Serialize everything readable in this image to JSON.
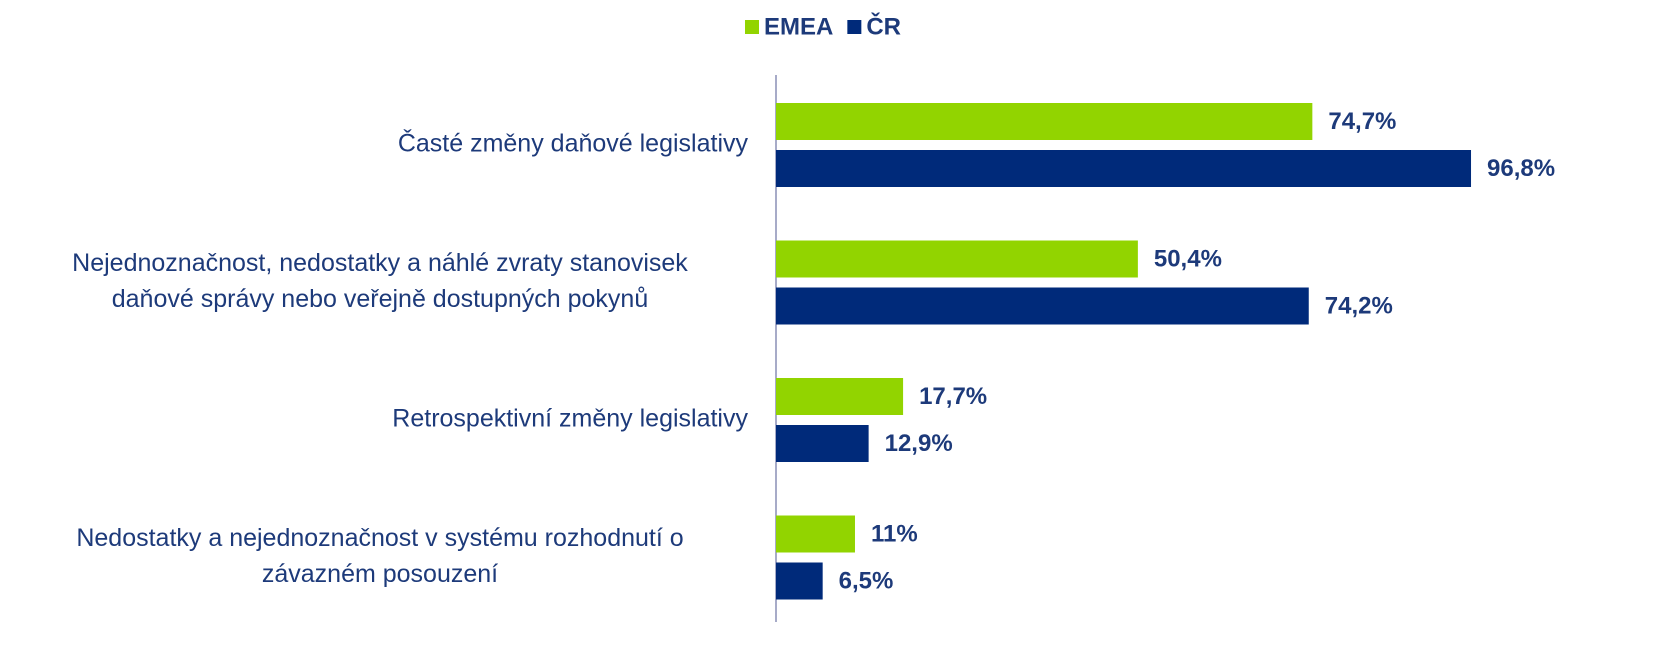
{
  "chart_data": {
    "type": "bar",
    "orientation": "horizontal",
    "categories": [
      [
        "Časté změny daňové legislativy"
      ],
      [
        "Nejednoznačnost, nedostatky a náhlé zvraty stanovisek",
        "daňové správy nebo veřejně dostupných pokynů"
      ],
      [
        "Retrospektivní změny legislativy"
      ],
      [
        "Nedostatky a nejednoznačnost v systému rozhodnutí o",
        "závazném posouzení"
      ]
    ],
    "series": [
      {
        "name": "EMEA",
        "color": "#92d400",
        "values": [
          74.7,
          50.4,
          17.7,
          11
        ],
        "value_labels": [
          "74,7%",
          "50,4%",
          "17,7%",
          "11%"
        ]
      },
      {
        "name": "ČR",
        "color": "#002a7a",
        "values": [
          96.8,
          74.2,
          12.9,
          6.5
        ],
        "value_labels": [
          "96,8%",
          "74,2%",
          "12,9%",
          "6,5%"
        ]
      }
    ],
    "legend": "top"
  }
}
